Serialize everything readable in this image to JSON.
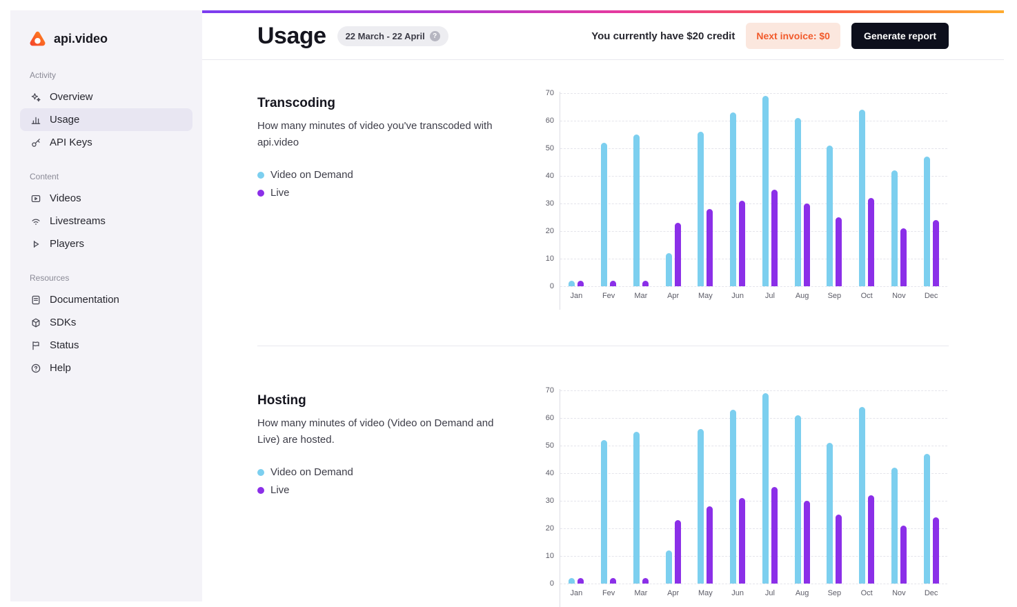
{
  "brand": {
    "name": "api.video"
  },
  "sidebar": {
    "sections": [
      {
        "label": "Activity",
        "items": [
          {
            "label": "Overview",
            "icon": "sparkle-icon",
            "active": false
          },
          {
            "label": "Usage",
            "icon": "bar-chart-icon",
            "active": true
          },
          {
            "label": "API Keys",
            "icon": "key-icon",
            "active": false
          }
        ]
      },
      {
        "label": "Content",
        "items": [
          {
            "label": "Videos",
            "icon": "video-icon",
            "active": false
          },
          {
            "label": "Livestreams",
            "icon": "livestream-icon",
            "active": false
          },
          {
            "label": "Players",
            "icon": "player-icon",
            "active": false
          }
        ]
      },
      {
        "label": "Resources",
        "items": [
          {
            "label": "Documentation",
            "icon": "documentation-icon",
            "active": false
          },
          {
            "label": "SDKs",
            "icon": "sdk-icon",
            "active": false
          },
          {
            "label": "Status",
            "icon": "status-icon",
            "active": false
          },
          {
            "label": "Help",
            "icon": "help-icon",
            "active": false
          }
        ]
      }
    ]
  },
  "header": {
    "title": "Usage",
    "date_range": "22 March - 22 April",
    "date_help_icon": "question-icon",
    "credit_text": "You currently have $20 credit",
    "invoice_label": "Next invoice: $0",
    "report_button": "Generate report"
  },
  "legend": {
    "vod": "Video on Demand",
    "live": "Live"
  },
  "colors": {
    "vod": "#7CCFEF",
    "live": "#8B2FE8",
    "invoice_text": "#F15A2B",
    "invoice_bg": "#FBE7DE",
    "report_button_bg": "#0D0F1C"
  },
  "sections": [
    {
      "title": "Transcoding",
      "description": "How many minutes of video you've transcoded with api.video"
    },
    {
      "title": "Hosting",
      "description": "How many minutes of video (Video on Demand and Live) are hosted."
    }
  ],
  "chart_data": [
    {
      "type": "bar",
      "title": "Transcoding",
      "categories": [
        "Jan",
        "Fev",
        "Mar",
        "Apr",
        "May",
        "Jun",
        "Jul",
        "Aug",
        "Sep",
        "Oct",
        "Nov",
        "Dec"
      ],
      "series": [
        {
          "name": "Video on Demand",
          "color": "#7CCFEF",
          "values": [
            2,
            52,
            55,
            12,
            56,
            63,
            69,
            61,
            51,
            64,
            42,
            47
          ]
        },
        {
          "name": "Live",
          "color": "#8B2FE8",
          "values": [
            2,
            2,
            2,
            23,
            28,
            31,
            35,
            30,
            25,
            32,
            21,
            24
          ]
        }
      ],
      "ylabel": "",
      "xlabel": "",
      "ylim": [
        0,
        70
      ],
      "yticks": [
        0,
        10,
        20,
        30,
        40,
        50,
        60,
        70
      ],
      "grid": "dashed-horizontal",
      "legend_position": "left"
    },
    {
      "type": "bar",
      "title": "Hosting",
      "categories": [
        "Jan",
        "Fev",
        "Mar",
        "Apr",
        "May",
        "Jun",
        "Jul",
        "Aug",
        "Sep",
        "Oct",
        "Nov",
        "Dec"
      ],
      "series": [
        {
          "name": "Video on Demand",
          "color": "#7CCFEF",
          "values": [
            2,
            52,
            55,
            12,
            56,
            63,
            69,
            61,
            51,
            64,
            42,
            47
          ]
        },
        {
          "name": "Live",
          "color": "#8B2FE8",
          "values": [
            2,
            2,
            2,
            23,
            28,
            31,
            35,
            30,
            25,
            32,
            21,
            24
          ]
        }
      ],
      "ylabel": "",
      "xlabel": "",
      "ylim": [
        0,
        70
      ],
      "yticks": [
        0,
        10,
        20,
        30,
        40,
        50,
        60,
        70
      ],
      "grid": "dashed-horizontal",
      "legend_position": "left"
    }
  ]
}
